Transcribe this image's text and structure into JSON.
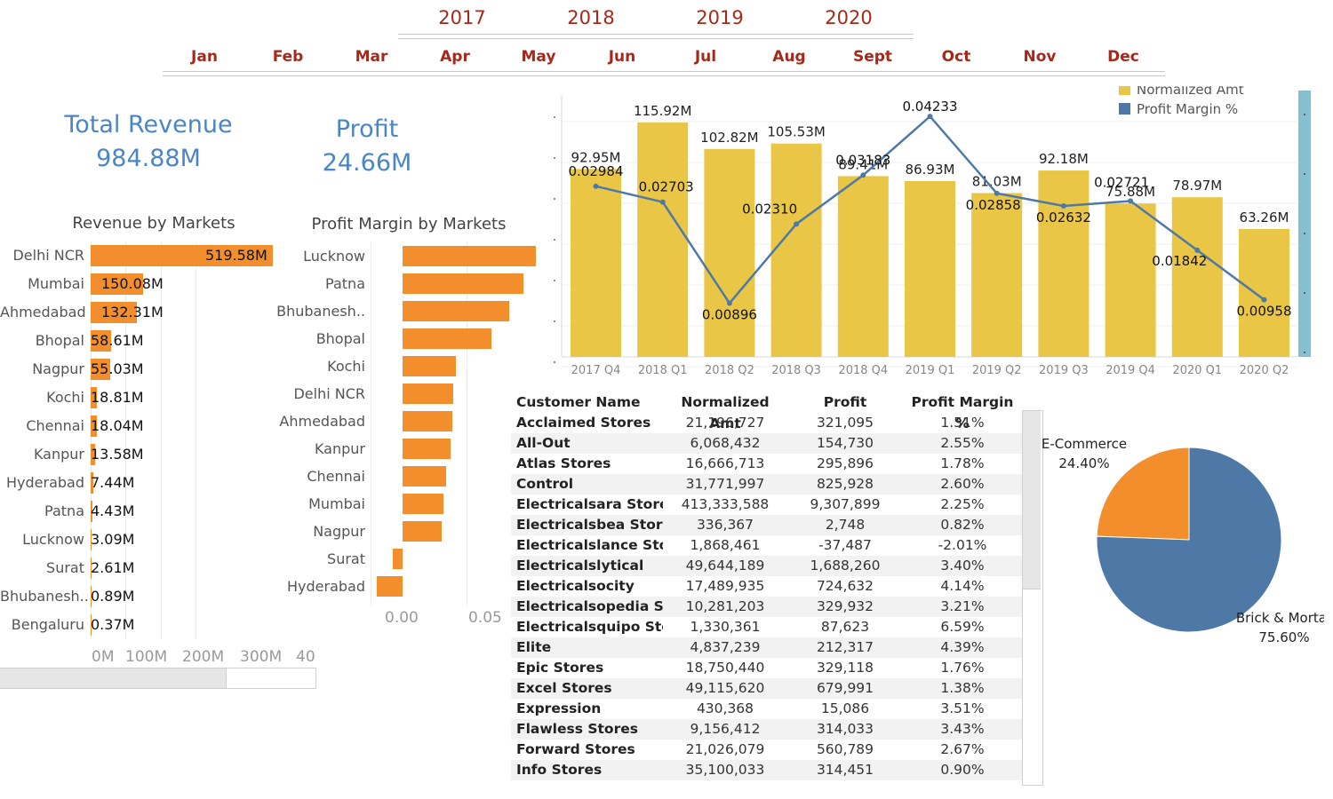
{
  "years": [
    "2017",
    "2018",
    "2019",
    "2020"
  ],
  "months": [
    "Jan",
    "Feb",
    "Mar",
    "Apr",
    "May",
    "Jun",
    "Jul",
    "Aug",
    "Sept",
    "Oct",
    "Nov",
    "Dec"
  ],
  "kpi": {
    "revenue_title": "Total Revenue",
    "revenue_value": "984.88M",
    "profit_title": "Profit",
    "profit_value": "24.66M"
  },
  "revenue_chart": {
    "title": "Revenue by Markets",
    "markets": [
      "Delhi NCR",
      "Mumbai",
      "Ahmedabad",
      "Bhopal",
      "Nagpur",
      "Kochi",
      "Chennai",
      "Kanpur",
      "Hyderabad",
      "Patna",
      "Lucknow",
      "Surat",
      "Bhubanesh..",
      "Bengaluru"
    ],
    "values": [
      519.58,
      150.08,
      132.31,
      58.61,
      55.03,
      18.81,
      18.04,
      13.58,
      7.44,
      4.43,
      3.09,
      2.61,
      0.89,
      0.37
    ],
    "labels": [
      "519.58M",
      "150.08M",
      "132.31M",
      "58.61M",
      "55.03M",
      "18.81M",
      "18.04M",
      "13.58M",
      "7.44M",
      "4.43M",
      "3.09M",
      "2.61M",
      "0.89M",
      "0.37M"
    ],
    "ticks": [
      "0M",
      "100M",
      "200M",
      "300M",
      "40"
    ]
  },
  "margin_chart": {
    "title": "Profit Margin by Markets",
    "markets": [
      "Lucknow",
      "Patna",
      "Bhubanesh..",
      "Bhopal",
      "Kochi",
      "Delhi NCR",
      "Ahmedabad",
      "Kanpur",
      "Chennai",
      "Mumbai",
      "Nagpur",
      "Surat",
      "Hyderabad"
    ],
    "values": [
      0.105,
      0.095,
      0.084,
      0.07,
      0.042,
      0.04,
      0.039,
      0.038,
      0.034,
      0.032,
      0.031,
      -0.008,
      -0.02
    ],
    "ticks": [
      "0.00",
      "0.05"
    ]
  },
  "chart_data": {
    "type": "bar",
    "categories": [
      "2017 Q4",
      "2018 Q1",
      "2018 Q2",
      "2018 Q3",
      "2018 Q4",
      "2019 Q1",
      "2019 Q2",
      "2019 Q3",
      "2019 Q4",
      "2020 Q1",
      "2020 Q2"
    ],
    "series": [
      {
        "name": "Normalized Amt",
        "type": "bar",
        "values": [
          92.95,
          115.92,
          102.82,
          105.53,
          89.41,
          86.93,
          81.03,
          92.18,
          75.88,
          78.97,
          63.26
        ],
        "labels": [
          "92.95M",
          "115.92M",
          "102.82M",
          "105.53M",
          "89.41M",
          "86.93M",
          "81.03M",
          "92.18M",
          "75.88M",
          "78.97M",
          "63.26M"
        ],
        "color": "#e9c645"
      },
      {
        "name": "Profit Margin %",
        "type": "line",
        "values": [
          0.02984,
          0.02703,
          0.00896,
          0.0231,
          0.03183,
          0.04233,
          0.02858,
          0.02632,
          0.02721,
          0.01842,
          0.00958
        ],
        "labels": [
          "0.02984",
          "0.02703",
          "0.00896",
          "0.02310",
          "0.03183",
          "0.04233",
          "0.02858",
          "0.02632",
          "0.02721",
          "0.01842",
          "0.00958"
        ],
        "color": "#4e79a7"
      }
    ],
    "legend": "top-right",
    "grid": true
  },
  "table": {
    "headers": [
      "Customer Name",
      "Normalized Amt",
      "Profit",
      "Profit Margin %"
    ],
    "rows": [
      [
        "Acclaimed Stores",
        "21,196,727",
        "321,095",
        "1.51%"
      ],
      [
        "All-Out",
        "6,068,432",
        "154,730",
        "2.55%"
      ],
      [
        "Atlas Stores",
        "16,666,713",
        "295,896",
        "1.78%"
      ],
      [
        "Control",
        "31,771,997",
        "825,928",
        "2.60%"
      ],
      [
        "Electricalsara Stores",
        "413,333,588",
        "9,307,899",
        "2.25%"
      ],
      [
        "Electricalsbea Stores",
        "336,367",
        "2,748",
        "0.82%"
      ],
      [
        "Electricalslance Sto..",
        "1,868,461",
        "-37,487",
        "-2.01%"
      ],
      [
        "Electricalslytical",
        "49,644,189",
        "1,688,260",
        "3.40%"
      ],
      [
        "Electricalsocity",
        "17,489,935",
        "724,632",
        "4.14%"
      ],
      [
        "Electricalsopedia St..",
        "10,281,203",
        "329,932",
        "3.21%"
      ],
      [
        "Electricalsquipo Sto..",
        "1,330,361",
        "87,623",
        "6.59%"
      ],
      [
        "Elite",
        "4,837,239",
        "212,317",
        "4.39%"
      ],
      [
        "Epic Stores",
        "18,750,440",
        "329,118",
        "1.76%"
      ],
      [
        "Excel Stores",
        "49,115,620",
        "679,991",
        "1.38%"
      ],
      [
        "Expression",
        "430,368",
        "15,086",
        "3.51%"
      ],
      [
        "Flawless Stores",
        "9,156,412",
        "314,033",
        "3.43%"
      ],
      [
        "Forward Stores",
        "21,026,079",
        "560,789",
        "2.67%"
      ],
      [
        "Info Stores",
        "35,100,033",
        "314,451",
        "0.90%"
      ]
    ]
  },
  "pie": {
    "slices": [
      {
        "name": "E-Commerce",
        "pct": "24.40%",
        "value": 24.4,
        "color": "#f28e2b"
      },
      {
        "name": "Brick & Mortar",
        "pct": "75.60%",
        "value": 75.6,
        "color": "#4e79a7"
      }
    ]
  }
}
